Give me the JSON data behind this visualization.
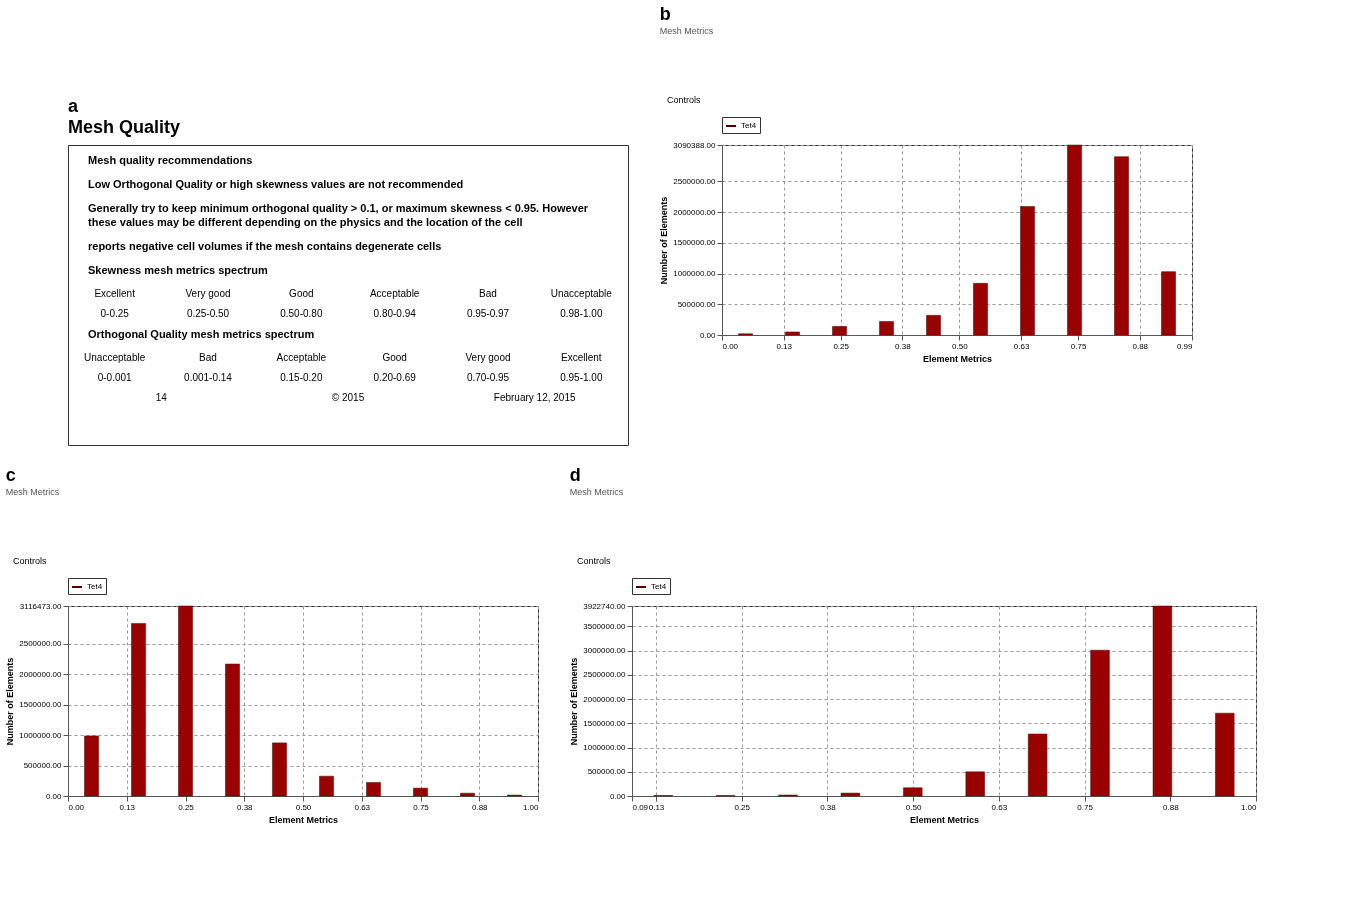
{
  "chart_data": [
    {
      "type": "other",
      "title": "a",
      "subtitle": "Mesh Quality",
      "annotations": [
        "Mesh quality recommendations",
        "Low Orthogonal Quality or high skewness values are not recommended",
        "Generally try to keep minimum orthogonal quality > 0.1, or maximum skewness < 0.95. However these values may be different depending on  the physics and the location of the cell",
        "reports negative cell  volumes if the mesh contains degenerate cells",
        "Skewness mesh metrics spectrum",
        "Excellent",
        "Very good",
        "Good",
        "Acceptable",
        "Bad",
        "Unacceptable",
        "0-0.25",
        "0.25-0.50",
        "0.50-0.80",
        "0.80-0.94",
        "0.95-0.97",
        "0.98-1.00",
        "Orthogonal Quality mesh metrics spectrum",
        "Unacceptable",
        "Bad",
        "Acceptable",
        "Good",
        "Very good",
        "Excellent",
        "0-0.001",
        "0.001-0.14",
        "0.15-0.20",
        "0.20-0.69",
        "0.70-0.95",
        "0.95-1.00",
        "14",
        "© 2015",
        "February 12, 2015"
      ]
    },
    {
      "type": "histogram",
      "title": "b",
      "subtitle": "Mesh Metrics",
      "annotations": [
        "Controls"
      ],
      "xlabel": "Element Metrics",
      "ylabel": "Number of Elements",
      "bins": [
        0,
        0.099,
        0.198,
        0.297,
        0.396,
        0.495,
        0.594,
        0.693,
        0.792,
        0.891,
        0.99
      ],
      "series": [
        {
          "name": "Tet4",
          "color": "#990000",
          "values": [
            20000,
            50000,
            140000,
            220000,
            320000,
            840000,
            2090000,
            3090388,
            2900000,
            1030000
          ]
        }
      ],
      "xlim": [
        0,
        0.99
      ],
      "xticks": [
        {
          "value": 0,
          "label": "0.00"
        },
        {
          "value": 0.13,
          "label": "0.13"
        },
        {
          "value": 0.25,
          "label": "0.25"
        },
        {
          "value": 0.38,
          "label": "0.38"
        },
        {
          "value": 0.5,
          "label": "0.50"
        },
        {
          "value": 0.63,
          "label": "0.63"
        },
        {
          "value": 0.75,
          "label": "0.75"
        },
        {
          "value": 0.88,
          "label": "0.88"
        },
        {
          "value": 0.99,
          "label": "0.99"
        }
      ],
      "ylim": [
        0,
        3090388
      ],
      "yticks": [
        {
          "value": 0,
          "label": "0.00"
        },
        {
          "value": 500000,
          "label": "500000.00"
        },
        {
          "value": 1000000,
          "label": "1000000.00"
        },
        {
          "value": 1500000,
          "label": "1500000.00"
        },
        {
          "value": 2000000,
          "label": "2000000.00"
        },
        {
          "value": 2500000,
          "label": "2500000.00"
        },
        {
          "value": 3090388,
          "label": "3090388.00"
        }
      ],
      "grid": true,
      "legend": "top left"
    },
    {
      "type": "histogram",
      "title": "c",
      "subtitle": "Mesh Metrics",
      "annotations": [
        "Controls"
      ],
      "xlabel": "Element Metrics",
      "ylabel": "Number of Elements",
      "bins": [
        0,
        0.1,
        0.2,
        0.3,
        0.4,
        0.5,
        0.6,
        0.7,
        0.8,
        0.9,
        1.0
      ],
      "series": [
        {
          "name": "Tet4",
          "color": "#990000",
          "values": [
            985000,
            2830000,
            3116473,
            2165000,
            871000,
            325000,
            222000,
            129000,
            46000,
            15000
          ]
        }
      ],
      "xlim": [
        0,
        1.0
      ],
      "xticks": [
        {
          "value": 0,
          "label": "0.00"
        },
        {
          "value": 0.125,
          "label": "0.13"
        },
        {
          "value": 0.25,
          "label": "0.25"
        },
        {
          "value": 0.375,
          "label": "0.38"
        },
        {
          "value": 0.5,
          "label": "0.50"
        },
        {
          "value": 0.625,
          "label": "0.63"
        },
        {
          "value": 0.75,
          "label": "0.75"
        },
        {
          "value": 0.875,
          "label": "0.88"
        },
        {
          "value": 1.0,
          "label": "1.00"
        }
      ],
      "ylim": [
        0,
        3116473
      ],
      "yticks": [
        {
          "value": 0,
          "label": "0.00"
        },
        {
          "value": 500000,
          "label": "500000.00"
        },
        {
          "value": 1000000,
          "label": "1000000.00"
        },
        {
          "value": 1500000,
          "label": "1500000.00"
        },
        {
          "value": 2000000,
          "label": "2000000.00"
        },
        {
          "value": 2500000,
          "label": "2500000.00"
        },
        {
          "value": 3116473,
          "label": "3116473.00"
        }
      ],
      "grid": true,
      "legend": "top left"
    },
    {
      "type": "histogram",
      "title": "d",
      "subtitle": "Mesh Metrics",
      "annotations": [
        "Controls"
      ],
      "xlabel": "Element Metrics",
      "ylabel": "Number of Elements",
      "bins": [
        0.09,
        0.181,
        0.272,
        0.363,
        0.454,
        0.545,
        0.636,
        0.727,
        0.818,
        0.909,
        1.0
      ],
      "series": [
        {
          "name": "Tet4",
          "color": "#990000",
          "values": [
            10000,
            10000,
            20000,
            60000,
            170000,
            500000,
            1280000,
            3010000,
            3922740,
            1710000
          ]
        }
      ],
      "xlim": [
        0.09,
        1.0
      ],
      "xticks": [
        {
          "value": 0.09,
          "label": "0.09"
        },
        {
          "value": 0.125,
          "label": "0.13"
        },
        {
          "value": 0.25,
          "label": "0.25"
        },
        {
          "value": 0.375,
          "label": "0.38"
        },
        {
          "value": 0.5,
          "label": "0.50"
        },
        {
          "value": 0.625,
          "label": "0.63"
        },
        {
          "value": 0.75,
          "label": "0.75"
        },
        {
          "value": 0.875,
          "label": "0.88"
        },
        {
          "value": 1.0,
          "label": "1.00"
        }
      ],
      "ylim": [
        0,
        3922740
      ],
      "yticks": [
        {
          "value": 0,
          "label": "0.00"
        },
        {
          "value": 500000,
          "label": "500000.00"
        },
        {
          "value": 1000000,
          "label": "1000000.00"
        },
        {
          "value": 1500000,
          "label": "1500000.00"
        },
        {
          "value": 2000000,
          "label": "2000000.00"
        },
        {
          "value": 2500000,
          "label": "2500000.00"
        },
        {
          "value": 3000000,
          "label": "3000000.00"
        },
        {
          "value": 3500000,
          "label": "3500000.00"
        },
        {
          "value": 3922740,
          "label": "3922740.00"
        }
      ],
      "grid": true,
      "legend": "top left"
    }
  ]
}
